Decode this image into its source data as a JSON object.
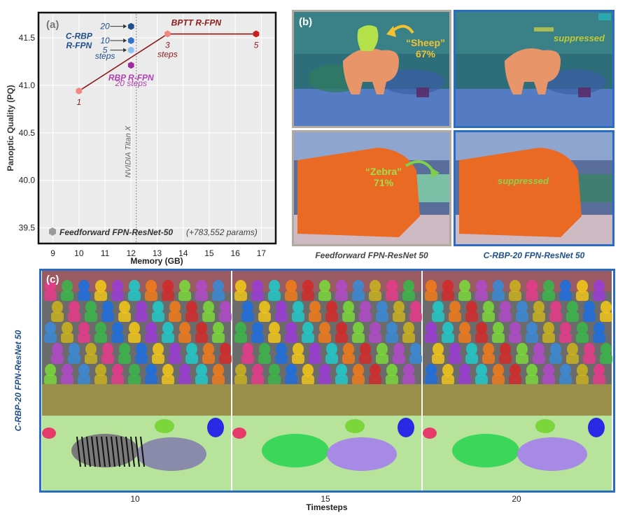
{
  "panel_a": {
    "label": "(a)",
    "chart_data": {
      "type": "scatter",
      "xlabel": "Memory (GB)",
      "ylabel": "Panoptic Quality (PQ)",
      "xlim": [
        8.5,
        17.5
      ],
      "ylim": [
        39.35,
        41.75
      ],
      "xticks": [
        "9",
        "10",
        "11",
        "12",
        "13",
        "14",
        "15",
        "16",
        "17"
      ],
      "yticks": [
        "39.5",
        "40.0",
        "40.5",
        "41.0",
        "41.5"
      ],
      "vline_label": "NVIDIA Titan X",
      "vline_x": 12.2,
      "series": [
        {
          "name": "BPTT R-FPN",
          "color": "#8b1a1a",
          "marker": "#e04a4a",
          "line": true,
          "points": [
            {
              "x": 10,
              "y": 40.94,
              "label": "1"
            },
            {
              "x": 13.4,
              "y": 41.54,
              "label": "3"
            },
            {
              "x": 16.8,
              "y": 41.54,
              "label": "5"
            }
          ]
        },
        {
          "name": "C-RBP R-FPN",
          "color": "#1f4e8c",
          "marker": "#1f5fb5",
          "line": false,
          "points": [
            {
              "x": 12,
              "y": 41.62,
              "label": "20"
            },
            {
              "x": 12,
              "y": 41.47,
              "label": "10"
            },
            {
              "x": 12,
              "y": 41.37,
              "label": "5"
            }
          ]
        },
        {
          "name": "RBP R-FPN",
          "color": "#b040b0",
          "marker": "#a02aa0",
          "line": false,
          "points": [
            {
              "x": 12,
              "y": 41.21,
              "label": "20"
            }
          ]
        }
      ],
      "steps_word": "steps",
      "rbp_steps": "20 steps",
      "bptt_steps_word": "steps",
      "legend": {
        "name": "Feedforward FPN-ResNet-50",
        "note": "(+783,552 params)"
      }
    }
  },
  "panel_b": {
    "label": "(b)",
    "sheep_quote": "“Sheep”",
    "sheep_pct": "67%",
    "zebra_quote": "“Zebra”",
    "zebra_pct": "71%",
    "suppressed_1": "suppressed",
    "suppressed_2": "suppressed",
    "caption_left": "Feedforward FPN-ResNet 50",
    "caption_right": "C-RBP-20 FPN-ResNet 50"
  },
  "panel_c": {
    "label": "(c)",
    "side_label": "C-RBP-20 FPN-ResNet 50",
    "timesteps": [
      "10",
      "15",
      "20"
    ],
    "xlabel": "Timesteps"
  },
  "colors": {
    "frame_blue": "#2a6cc0",
    "frame_gray": "#b0aaa2",
    "bptt": "#8b1a1a",
    "crbp": "#1f4e8c",
    "rbp": "#b040b0"
  }
}
